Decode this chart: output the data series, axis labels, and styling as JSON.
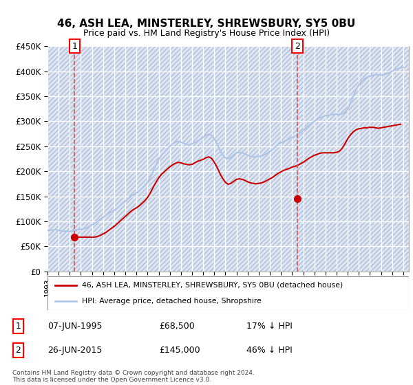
{
  "title": "46, ASH LEA, MINSTERLEY, SHREWSBURY, SY5 0BU",
  "subtitle": "Price paid vs. HM Land Registry's House Price Index (HPI)",
  "ylabel_ticks": [
    "£0",
    "£50K",
    "£100K",
    "£150K",
    "£200K",
    "£250K",
    "£300K",
    "£350K",
    "£400K",
    "£450K"
  ],
  "ytick_values": [
    0,
    50000,
    100000,
    150000,
    200000,
    250000,
    300000,
    350000,
    400000,
    450000
  ],
  "xmin": 1993.0,
  "xmax": 2025.5,
  "ymin": 0,
  "ymax": 450000,
  "transaction1_date": 1995.44,
  "transaction1_price": 68500,
  "transaction1_label": "1",
  "transaction1_text": "07-JUN-1995",
  "transaction1_price_text": "£68,500",
  "transaction1_below": "17% ↓ HPI",
  "transaction2_date": 2015.48,
  "transaction2_price": 145000,
  "transaction2_label": "2",
  "transaction2_text": "26-JUN-2015",
  "transaction2_price_text": "£145,000",
  "transaction2_below": "46% ↓ HPI",
  "hpi_color": "#aec6e8",
  "price_color": "#cc0000",
  "vline_color": "#e05050",
  "legend_label1": "46, ASH LEA, MINSTERLEY, SHREWSBURY, SY5 0BU (detached house)",
  "legend_label2": "HPI: Average price, detached house, Shropshire",
  "footnote": "Contains HM Land Registry data © Crown copyright and database right 2024.\nThis data is licensed under the Open Government Licence v3.0.",
  "hpi_years": [
    1993,
    1993.25,
    1993.5,
    1993.75,
    1994,
    1994.25,
    1994.5,
    1994.75,
    1995,
    1995.25,
    1995.5,
    1995.75,
    1996,
    1996.25,
    1996.5,
    1996.75,
    1997,
    1997.25,
    1997.5,
    1997.75,
    1998,
    1998.25,
    1998.5,
    1998.75,
    1999,
    1999.25,
    1999.5,
    1999.75,
    2000,
    2000.25,
    2000.5,
    2000.75,
    2001,
    2001.25,
    2001.5,
    2001.75,
    2002,
    2002.25,
    2002.5,
    2002.75,
    2003,
    2003.25,
    2003.5,
    2003.75,
    2004,
    2004.25,
    2004.5,
    2004.75,
    2005,
    2005.25,
    2005.5,
    2005.75,
    2006,
    2006.25,
    2006.5,
    2006.75,
    2007,
    2007.25,
    2007.5,
    2007.75,
    2008,
    2008.25,
    2008.5,
    2008.75,
    2009,
    2009.25,
    2009.5,
    2009.75,
    2010,
    2010.25,
    2010.5,
    2010.75,
    2011,
    2011.25,
    2011.5,
    2011.75,
    2012,
    2012.25,
    2012.5,
    2012.75,
    2013,
    2013.25,
    2013.5,
    2013.75,
    2014,
    2014.25,
    2014.5,
    2014.75,
    2015,
    2015.25,
    2015.5,
    2015.75,
    2016,
    2016.25,
    2016.5,
    2016.75,
    2017,
    2017.25,
    2017.5,
    2017.75,
    2018,
    2018.25,
    2018.5,
    2018.75,
    2019,
    2019.25,
    2019.5,
    2019.75,
    2020,
    2020.25,
    2020.5,
    2020.75,
    2021,
    2021.25,
    2021.5,
    2021.75,
    2022,
    2022.25,
    2022.5,
    2022.75,
    2023,
    2023.25,
    2023.5,
    2023.75,
    2024,
    2024.25,
    2024.5,
    2024.75,
    2025
  ],
  "hpi_values": [
    82000,
    82500,
    83000,
    83500,
    82000,
    81000,
    80500,
    80000,
    80000,
    81000,
    82500,
    84000,
    84000,
    85000,
    87000,
    90000,
    93000,
    96000,
    100000,
    104000,
    108000,
    112000,
    116000,
    119000,
    122000,
    126000,
    131000,
    136000,
    140000,
    145000,
    150000,
    154000,
    157000,
    161000,
    166000,
    171000,
    178000,
    188000,
    200000,
    213000,
    224000,
    232000,
    238000,
    244000,
    250000,
    255000,
    258000,
    260000,
    258000,
    256000,
    254000,
    253000,
    255000,
    258000,
    261000,
    264000,
    268000,
    272000,
    274000,
    272000,
    265000,
    255000,
    243000,
    233000,
    227000,
    225000,
    228000,
    233000,
    237000,
    238000,
    237000,
    235000,
    232000,
    230000,
    229000,
    229000,
    230000,
    231000,
    233000,
    236000,
    240000,
    244000,
    249000,
    254000,
    257000,
    260000,
    262000,
    265000,
    268000,
    270000,
    273000,
    277000,
    282000,
    287000,
    292000,
    296000,
    300000,
    304000,
    307000,
    309000,
    311000,
    312000,
    313000,
    314000,
    314000,
    313000,
    315000,
    318000,
    325000,
    336000,
    350000,
    363000,
    373000,
    380000,
    385000,
    388000,
    390000,
    392000,
    393000,
    393000,
    392000,
    393000,
    395000,
    397000,
    400000,
    403000,
    405000,
    407000,
    408000
  ],
  "price_values": [
    null,
    null,
    null,
    null,
    null,
    null,
    null,
    null,
    null,
    68500,
    68500,
    68500,
    68500,
    68500,
    68500,
    68500,
    68500,
    68500,
    70000,
    72000,
    75000,
    78000,
    82000,
    86000,
    90000,
    95000,
    100000,
    105000,
    110000,
    115000,
    120000,
    124000,
    127000,
    131000,
    136000,
    141000,
    148000,
    157000,
    168000,
    178000,
    187000,
    194000,
    199000,
    204000,
    209000,
    213000,
    216000,
    218000,
    217000,
    215000,
    214000,
    213000,
    214000,
    217000,
    220000,
    222000,
    224000,
    227000,
    229000,
    226000,
    218000,
    208000,
    196000,
    186000,
    178000,
    174000,
    176000,
    180000,
    184000,
    185000,
    184000,
    182000,
    179000,
    177000,
    176000,
    175000,
    176000,
    177000,
    179000,
    182000,
    185000,
    188000,
    192000,
    196000,
    199000,
    202000,
    204000,
    206000,
    208500,
    210000,
    212000,
    215000,
    218000,
    222000,
    226000,
    229000,
    232000,
    234000,
    236000,
    237000,
    237000,
    237000,
    237000,
    237000,
    238000,
    240000,
    246000,
    255000,
    265000,
    273000,
    279000,
    283000,
    285000,
    286000,
    287000,
    287000,
    288000,
    288000,
    287000,
    286000,
    287000,
    288000,
    289000,
    290000,
    291000,
    292000,
    293000,
    294000
  ]
}
